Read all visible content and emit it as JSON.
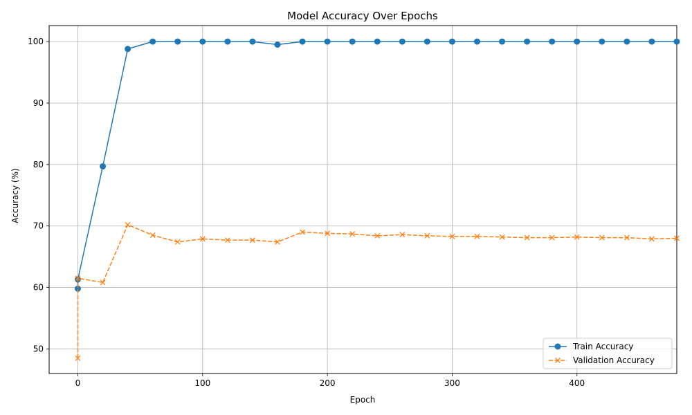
{
  "chart_data": {
    "type": "line",
    "title": "Model Accuracy Over Epochs",
    "xlabel": "Epoch",
    "ylabel": "Accuracy (%)",
    "xlim": [
      -23,
      480
    ],
    "ylim": [
      46,
      102.6
    ],
    "x_ticks": [
      0,
      100,
      200,
      300,
      400,
      500
    ],
    "y_ticks": [
      50,
      60,
      70,
      80,
      90,
      100
    ],
    "grid": true,
    "legend_position": "lower-right",
    "series": [
      {
        "name": "Train Accuracy",
        "color": "#1f77b4",
        "line_style": "solid",
        "marker": "circle",
        "x": [
          0,
          0,
          20,
          40,
          60,
          80,
          100,
          120,
          140,
          160,
          180,
          200,
          220,
          240,
          260,
          280,
          300,
          320,
          340,
          360,
          380,
          400,
          420,
          440,
          460,
          480
        ],
        "y": [
          59.8,
          61.3,
          79.7,
          98.8,
          100,
          100,
          100,
          100,
          100,
          99.5,
          100,
          100,
          100,
          100,
          100,
          100,
          100,
          100,
          100,
          100,
          100,
          100,
          100,
          100,
          100,
          100
        ]
      },
      {
        "name": "Validation Accuracy",
        "color": "#ff7f0e",
        "line_style": "dashed",
        "marker": "x",
        "x": [
          0,
          0,
          20,
          40,
          60,
          80,
          100,
          120,
          140,
          160,
          180,
          200,
          220,
          240,
          260,
          280,
          300,
          320,
          340,
          360,
          380,
          400,
          420,
          440,
          460,
          480
        ],
        "y": [
          48.5,
          61.5,
          60.8,
          70.2,
          68.5,
          67.4,
          67.9,
          67.7,
          67.7,
          67.4,
          69.0,
          68.8,
          68.7,
          68.4,
          68.6,
          68.4,
          68.3,
          68.3,
          68.2,
          68.1,
          68.1,
          68.2,
          68.1,
          68.1,
          67.9,
          68.0
        ]
      }
    ]
  }
}
